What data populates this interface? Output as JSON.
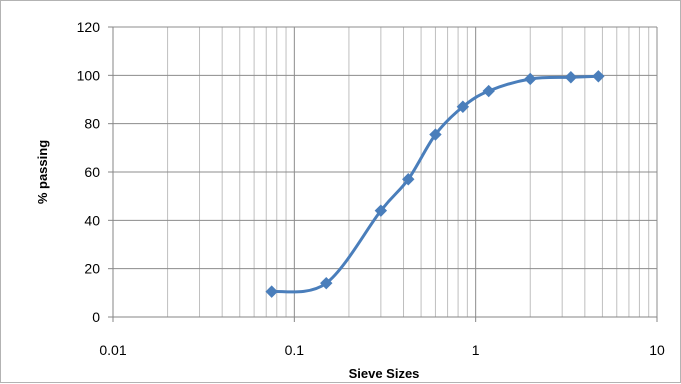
{
  "chart_data": {
    "type": "line",
    "title": "",
    "xlabel": "Sieve Sizes",
    "ylabel": "% passing",
    "x_scale": "log",
    "xlim": [
      0.01,
      10
    ],
    "ylim": [
      0,
      120
    ],
    "x_ticks": [
      "0.01",
      "0.1",
      "1",
      "10"
    ],
    "y_ticks": [
      "0",
      "20",
      "40",
      "60",
      "80",
      "100",
      "120"
    ],
    "grid": true,
    "legend": "none",
    "series": [
      {
        "color": "#4a7ebb",
        "marker": "diamond",
        "smooth": true,
        "x": [
          0.075,
          0.15,
          0.3,
          0.425,
          0.6,
          0.85,
          1.18,
          2.0,
          3.35,
          4.75
        ],
        "y": [
          10.5,
          14,
          44,
          57,
          75.5,
          87,
          93.5,
          98.5,
          99.2,
          99.6
        ]
      }
    ]
  }
}
